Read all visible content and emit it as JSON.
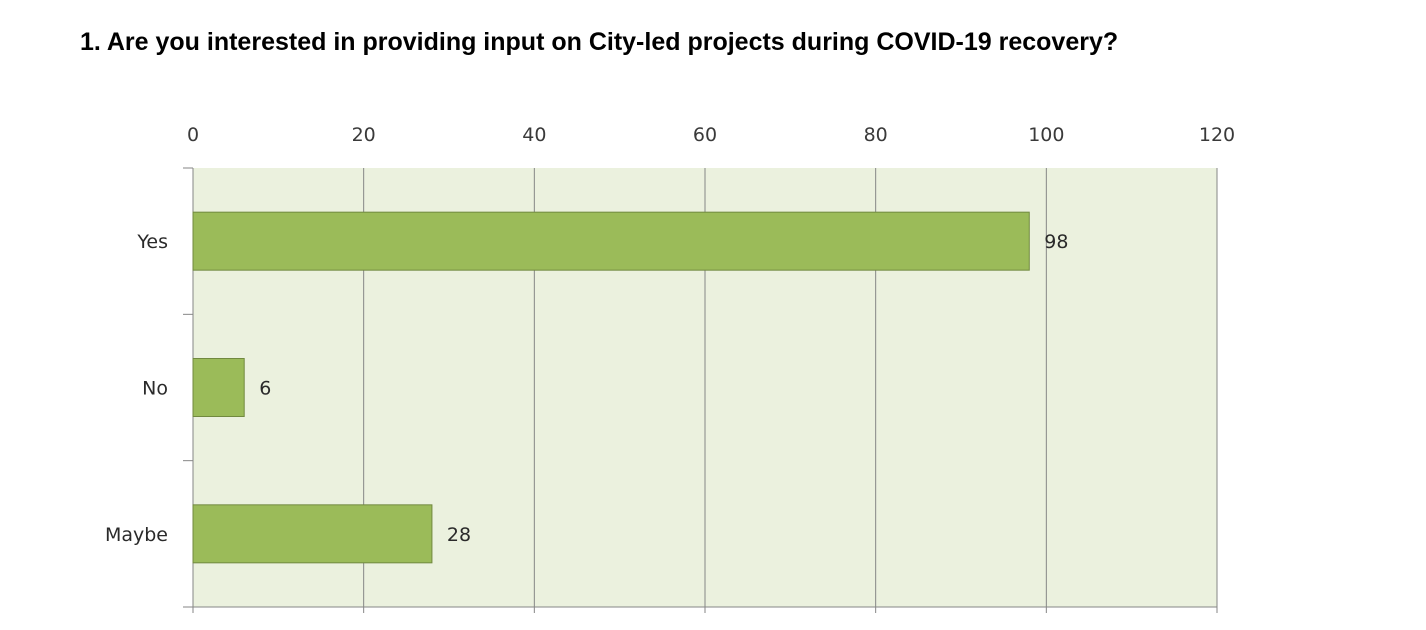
{
  "chart_data": {
    "type": "bar",
    "orientation": "horizontal",
    "title": "1. Are you interested in providing input on City-led projects during COVID-19 recovery?",
    "categories": [
      "Yes",
      "No",
      "Maybe"
    ],
    "values": [
      98,
      6,
      28
    ],
    "xlim": [
      0,
      120
    ],
    "xticks": [
      0,
      20,
      40,
      60,
      80,
      100,
      120
    ],
    "x_axis_position": "top",
    "grid": true,
    "legend": "none",
    "data_labels": true,
    "colors": {
      "bar_fill": "#9bbb59",
      "bar_stroke": "#71893f",
      "plot_background": "#ebf1de",
      "gridline": "#868686"
    }
  }
}
